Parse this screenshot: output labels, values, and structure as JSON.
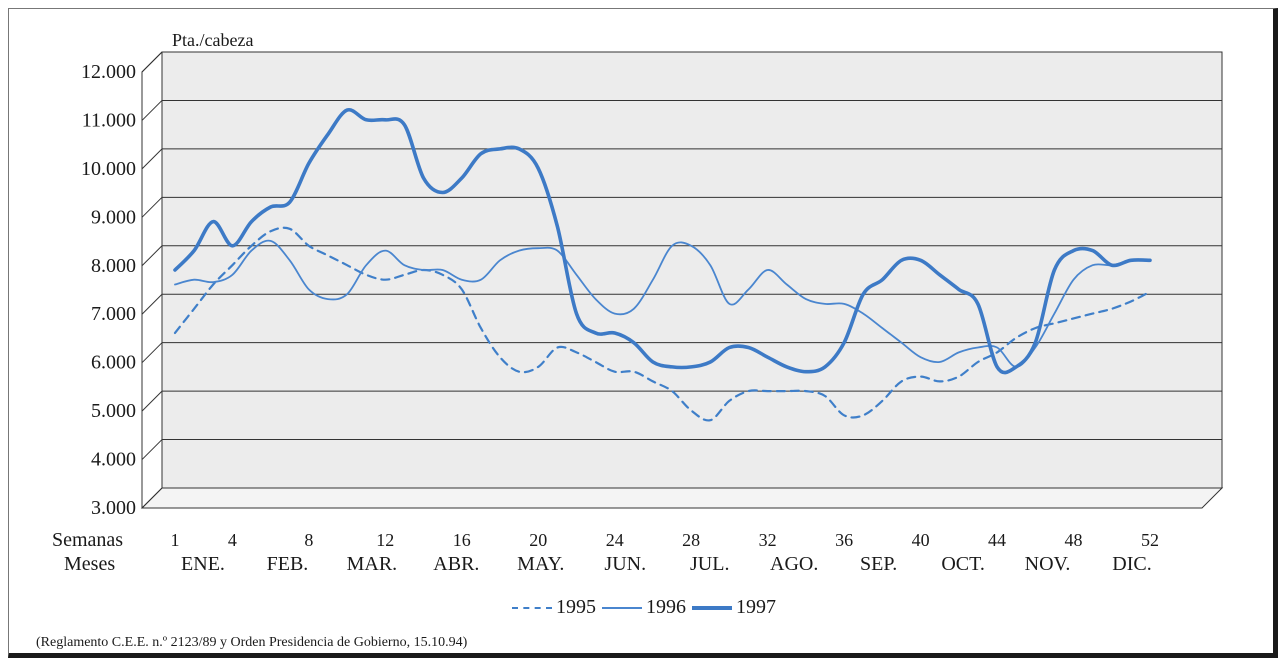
{
  "chart_data": {
    "type": "line",
    "ylabel": "Pta./cabeza",
    "ylim": [
      3000,
      12000
    ],
    "y_ticks": [
      "3.000",
      "4.000",
      "5.000",
      "6.000",
      "7.000",
      "8.000",
      "9.000",
      "10.000",
      "11.000",
      "12.000"
    ],
    "y_tick_values": [
      3000,
      4000,
      5000,
      6000,
      7000,
      8000,
      9000,
      10000,
      11000,
      12000
    ],
    "x_row_label": "Semanas",
    "x_ticks": [
      "1",
      "4",
      "8",
      "12",
      "16",
      "20",
      "24",
      "28",
      "32",
      "36",
      "40",
      "44",
      "48",
      "52"
    ],
    "x_tick_values": [
      1,
      4,
      8,
      12,
      16,
      20,
      24,
      28,
      32,
      36,
      40,
      44,
      48,
      52
    ],
    "month_row_label": "Meses",
    "months": [
      "ENE.",
      "FEB.",
      "MAR.",
      "ABR.",
      "MAY.",
      "JUN.",
      "JUL.",
      "AGO.",
      "SEP.",
      "OCT.",
      "NOV.",
      "DIC."
    ],
    "grid": true,
    "legend_position": "bottom",
    "series": [
      {
        "name": "1995",
        "style": "dashed",
        "color": "#3f7fc9",
        "x": [
          1,
          2,
          3,
          4,
          5,
          6,
          7,
          8,
          9,
          10,
          11,
          12,
          13,
          14,
          15,
          16,
          17,
          18,
          19,
          20,
          21,
          22,
          23,
          24,
          25,
          26,
          27,
          28,
          29,
          30,
          31,
          32,
          33,
          34,
          35,
          36,
          37,
          38,
          39,
          40,
          41,
          42,
          43,
          44,
          45,
          46,
          47,
          48,
          49,
          50,
          51,
          52
        ],
        "values": [
          6200,
          6700,
          7200,
          7600,
          8000,
          8300,
          8350,
          8000,
          7800,
          7600,
          7400,
          7300,
          7400,
          7500,
          7400,
          7100,
          6300,
          5700,
          5400,
          5500,
          5900,
          5800,
          5600,
          5400,
          5400,
          5200,
          5000,
          4600,
          4400,
          4800,
          5000,
          5000,
          5000,
          5000,
          4900,
          4500,
          4500,
          4800,
          5200,
          5300,
          5200,
          5300,
          5600,
          5800,
          6100,
          6300,
          6400,
          6500,
          6600,
          6700,
          6850,
          7050
        ]
      },
      {
        "name": "1996",
        "style": "solid",
        "color": "#4a86cf",
        "x": [
          1,
          2,
          3,
          4,
          5,
          6,
          7,
          8,
          9,
          10,
          11,
          12,
          13,
          14,
          15,
          16,
          17,
          18,
          19,
          20,
          21,
          22,
          23,
          24,
          25,
          26,
          27,
          28,
          29,
          30,
          31,
          32,
          33,
          34,
          35,
          36,
          37,
          38,
          39,
          40,
          41,
          42,
          43,
          44,
          45,
          46,
          47,
          48,
          49,
          50,
          51,
          52
        ],
        "values": [
          7200,
          7300,
          7250,
          7400,
          7900,
          8100,
          7700,
          7100,
          6900,
          7000,
          7600,
          7900,
          7600,
          7500,
          7500,
          7300,
          7300,
          7700,
          7900,
          7950,
          7900,
          7400,
          6900,
          6600,
          6700,
          7300,
          8000,
          8000,
          7600,
          6800,
          7100,
          7500,
          7200,
          6900,
          6800,
          6800,
          6600,
          6300,
          6000,
          5700,
          5600,
          5800,
          5900,
          5900,
          5500,
          5900,
          6600,
          7300,
          7600,
          7600,
          7700,
          7700
        ]
      },
      {
        "name": "1997",
        "style": "thick",
        "color": "#3d7ac6",
        "x": [
          1,
          2,
          3,
          4,
          5,
          6,
          7,
          8,
          9,
          10,
          11,
          12,
          13,
          14,
          15,
          16,
          17,
          18,
          19,
          20,
          21,
          22,
          23,
          24,
          25,
          26,
          27,
          28,
          29,
          30,
          31,
          32,
          33,
          34,
          35,
          36,
          37,
          38,
          39,
          40,
          41,
          42,
          43,
          44,
          45,
          46,
          47,
          48,
          49,
          50,
          51,
          52
        ],
        "values": [
          7500,
          7900,
          8500,
          8000,
          8500,
          8800,
          8900,
          9700,
          10300,
          10800,
          10600,
          10600,
          10500,
          9400,
          9100,
          9400,
          9900,
          10000,
          10000,
          9600,
          8400,
          6600,
          6200,
          6200,
          6000,
          5600,
          5500,
          5500,
          5600,
          5900,
          5900,
          5700,
          5500,
          5400,
          5500,
          6000,
          7000,
          7300,
          7700,
          7700,
          7400,
          7100,
          6800,
          5500,
          5500,
          6000,
          7500,
          7900,
          7900,
          7600,
          7700,
          7700
        ]
      }
    ]
  },
  "footnote": "(Reglamento C.E.E. n.º 2123/89 y Orden Presidencia de Gobierno, 15.10.94)"
}
